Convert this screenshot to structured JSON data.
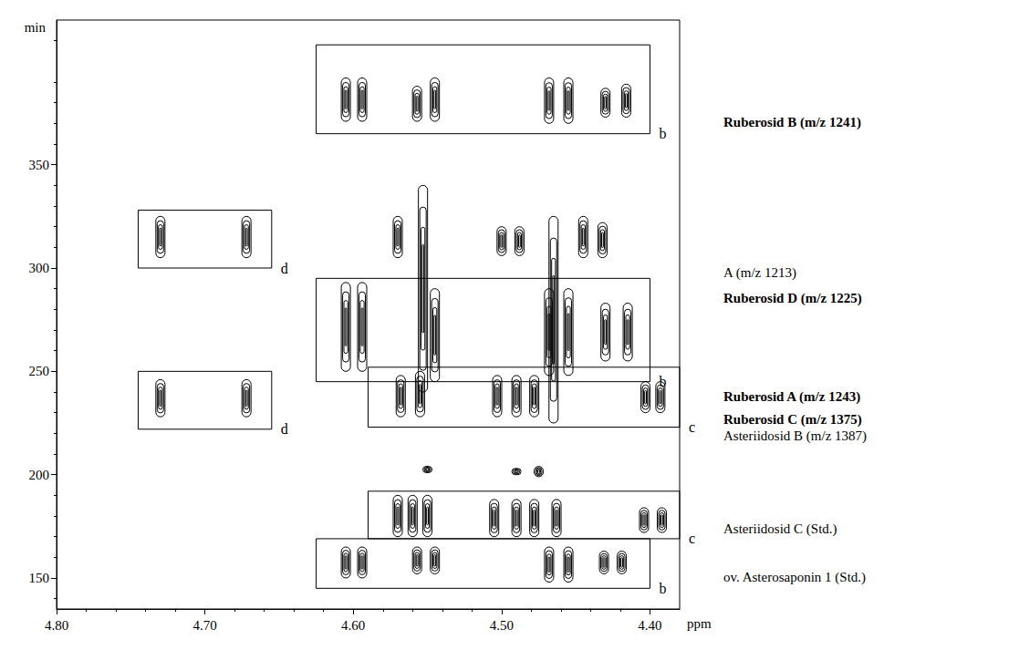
{
  "chart_data": {
    "type": "contour",
    "x_label": "ppm",
    "y_label": "min",
    "color": "#000000",
    "xlim": [
      4.38,
      4.8
    ],
    "xticks": [
      {
        "value": 4.8,
        "label": "4.80"
      },
      {
        "value": 4.7,
        "label": "4.70"
      },
      {
        "value": 4.6,
        "label": "4.60"
      },
      {
        "value": 4.5,
        "label": "4.50"
      },
      {
        "value": 4.4,
        "label": "4.40"
      }
    ],
    "ylim": [
      135,
      420
    ],
    "yticks": [
      150,
      200,
      250,
      300,
      350
    ],
    "peaks": [
      [
        4.605,
        371,
        392
      ],
      [
        4.594,
        371,
        392
      ],
      [
        4.557,
        371,
        388
      ],
      [
        4.545,
        371,
        392
      ],
      [
        4.468,
        370,
        392
      ],
      [
        4.455,
        370,
        392
      ],
      [
        4.43,
        373,
        387
      ],
      [
        4.416,
        373,
        389
      ],
      [
        4.605,
        250,
        293
      ],
      [
        4.594,
        250,
        293
      ],
      [
        4.553,
        240,
        340
      ],
      [
        4.545,
        245,
        290
      ],
      [
        4.468,
        248,
        290
      ],
      [
        4.455,
        248,
        290
      ],
      [
        4.465,
        225,
        325
      ],
      [
        4.43,
        255,
        283
      ],
      [
        4.415,
        255,
        283
      ],
      [
        4.57,
        305,
        325
      ],
      [
        4.5,
        306,
        320
      ],
      [
        4.488,
        306,
        320
      ],
      [
        4.445,
        305,
        325
      ],
      [
        4.432,
        305,
        322
      ],
      [
        4.568,
        228,
        248
      ],
      [
        4.555,
        228,
        250
      ],
      [
        4.503,
        228,
        248
      ],
      [
        4.49,
        228,
        248
      ],
      [
        4.478,
        228,
        248
      ],
      [
        4.403,
        230,
        245
      ],
      [
        4.393,
        230,
        245
      ],
      [
        4.57,
        170,
        190
      ],
      [
        4.56,
        170,
        190
      ],
      [
        4.55,
        170,
        190
      ],
      [
        4.505,
        170,
        188
      ],
      [
        4.49,
        170,
        188
      ],
      [
        4.478,
        170,
        188
      ],
      [
        4.463,
        170,
        188
      ],
      [
        4.404,
        172,
        184
      ],
      [
        4.392,
        172,
        184
      ],
      [
        4.605,
        150,
        165
      ],
      [
        4.594,
        150,
        165
      ],
      [
        4.557,
        152,
        165
      ],
      [
        4.545,
        152,
        165
      ],
      [
        4.468,
        148,
        165
      ],
      [
        4.455,
        148,
        165
      ],
      [
        4.431,
        152,
        163
      ],
      [
        4.419,
        152,
        163
      ],
      [
        4.73,
        228,
        246
      ],
      [
        4.672,
        228,
        246
      ],
      [
        4.73,
        305,
        325
      ],
      [
        4.672,
        305,
        325
      ],
      [
        4.49,
        200,
        203
      ],
      [
        4.475,
        199,
        204
      ],
      [
        4.55,
        201,
        204
      ]
    ],
    "boxes": [
      {
        "label": "b",
        "x": [
          4.625,
          4.4
        ],
        "y": [
          365,
          408
        ]
      },
      {
        "label": "d",
        "x": [
          4.745,
          4.655
        ],
        "y": [
          300,
          328
        ]
      },
      {
        "label": "b",
        "x": [
          4.625,
          4.4
        ],
        "y": [
          245,
          295
        ]
      },
      {
        "label": "c",
        "x": [
          4.59,
          4.38
        ],
        "y": [
          223,
          252
        ]
      },
      {
        "label": "d",
        "x": [
          4.745,
          4.655
        ],
        "y": [
          222,
          250
        ]
      },
      {
        "label": "c",
        "x": [
          4.59,
          4.38
        ],
        "y": [
          169,
          192
        ]
      },
      {
        "label": "b",
        "x": [
          4.625,
          4.4
        ],
        "y": [
          145,
          169
        ]
      }
    ],
    "labels_bold": [
      {
        "text": "Ruberosid B (m/z 1241)",
        "y": 370
      },
      {
        "text": "Ruberosid D (m/z 1225)",
        "y": 285
      },
      {
        "text": "Ruberosid A (m/z 1243)",
        "y": 237
      },
      {
        "text": "Ruberosid C (m/z 1375)",
        "y": 226
      }
    ],
    "labels": [
      {
        "text": "A (m/z 1213)",
        "y": 297
      },
      {
        "text": "Asteriidosid B (m/z 1387)",
        "y": 218
      },
      {
        "text": "Asteriidosid C (Std.)",
        "y": 173
      },
      {
        "text": "ov. Asterosaponin 1 (Std.)",
        "y": 150
      }
    ]
  }
}
